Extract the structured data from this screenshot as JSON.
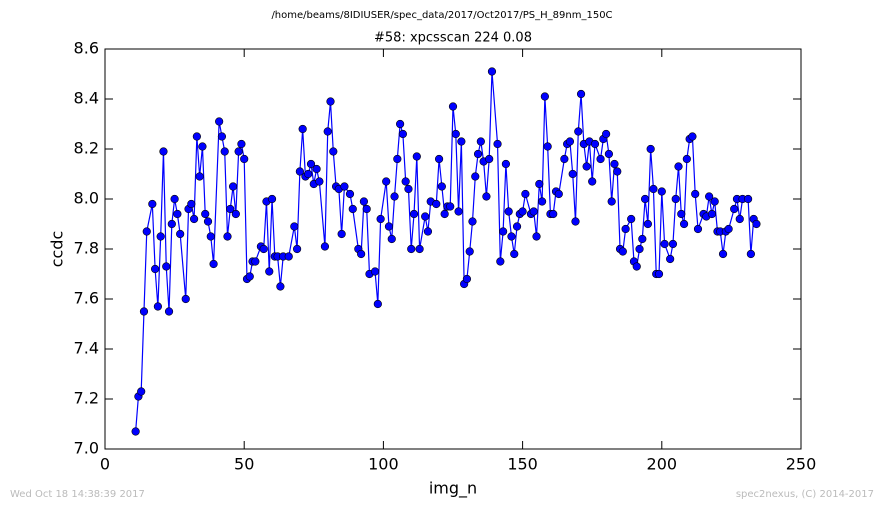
{
  "chart_data": {
    "type": "line",
    "suptitle": "/home/beams/8IDIUSER/spec_data/2017/Oct2017/PS_H_89nm_150C",
    "title": "#58: xpcsscan 224 0.08",
    "x_label": "img_n",
    "y_label": "ccdc",
    "footer_left": "Wed Oct 18 14:38:39 2017",
    "footer_right": "spec2nexus, (C) 2014-2017",
    "xlim": [
      0,
      250
    ],
    "xticks": [
      0,
      50,
      100,
      150,
      200,
      250
    ],
    "ylim": [
      7,
      8.6
    ],
    "yticks": [
      {
        "value": 7,
        "label": "7.0"
      },
      7.2,
      7.4,
      7.6,
      7.8,
      {
        "value": 8,
        "label": "8.0"
      },
      8.2,
      8.4,
      8.6
    ],
    "grid": false,
    "series": [
      {
        "color": "#0000ff",
        "x": [
          11,
          12,
          13,
          14,
          15,
          17,
          18,
          19,
          20,
          21,
          22,
          23,
          24,
          25,
          26,
          27,
          29,
          30,
          31,
          32,
          33,
          34,
          35,
          36,
          37,
          38,
          39,
          41,
          42,
          43,
          44,
          45,
          46,
          47,
          48,
          49,
          50,
          51,
          52,
          53,
          54,
          56,
          57,
          58,
          59,
          60,
          61,
          62,
          63,
          64,
          66,
          68,
          69,
          70,
          71,
          72,
          73,
          74,
          75,
          76,
          77,
          79,
          80,
          81,
          82,
          83,
          84,
          85,
          86,
          88,
          89,
          91,
          92,
          93,
          94,
          95,
          97,
          98,
          99,
          101,
          102,
          103,
          104,
          105,
          106,
          107,
          108,
          109,
          110,
          111,
          112,
          113,
          115,
          116,
          117,
          119,
          120,
          121,
          122,
          123,
          124,
          125,
          126,
          127,
          128,
          129,
          130,
          131,
          132,
          133,
          134,
          135,
          136,
          137,
          138,
          139,
          141,
          142,
          143,
          144,
          145,
          146,
          147,
          148,
          149,
          150,
          151,
          153,
          154,
          155,
          156,
          157,
          158,
          159,
          160,
          161,
          162,
          163,
          165,
          166,
          167,
          168,
          169,
          170,
          171,
          172,
          173,
          174,
          175,
          176,
          178,
          179,
          180,
          181,
          182,
          183,
          184,
          185,
          186,
          187,
          189,
          190,
          191,
          192,
          193,
          194,
          195,
          196,
          197,
          198,
          199,
          200,
          201,
          203,
          204,
          205,
          206,
          207,
          208,
          209,
          210,
          211,
          212,
          213,
          215,
          216,
          217,
          218,
          219,
          220,
          221,
          222,
          223,
          224,
          226,
          227,
          228,
          229,
          231,
          232,
          233,
          234
        ],
        "values": [
          7.07,
          7.21,
          7.23,
          7.55,
          7.87,
          7.98,
          7.72,
          7.57,
          7.85,
          8.19,
          7.73,
          7.55,
          7.9,
          8.0,
          7.94,
          7.86,
          7.6,
          7.96,
          7.98,
          7.92,
          8.25,
          8.09,
          8.21,
          7.94,
          7.91,
          7.85,
          7.74,
          8.31,
          8.25,
          8.19,
          7.85,
          7.96,
          8.05,
          7.94,
          8.19,
          8.22,
          8.16,
          7.68,
          7.69,
          7.75,
          7.75,
          7.81,
          7.8,
          7.99,
          7.71,
          8.0,
          7.77,
          7.77,
          7.65,
          7.77,
          7.77,
          7.89,
          7.8,
          8.11,
          8.28,
          8.09,
          8.1,
          8.14,
          8.06,
          8.12,
          8.07,
          7.81,
          8.27,
          8.39,
          8.19,
          8.05,
          8.04,
          7.86,
          8.05,
          8.02,
          7.96,
          7.8,
          7.78,
          7.99,
          7.96,
          7.7,
          7.71,
          7.58,
          7.92,
          8.07,
          7.89,
          7.84,
          8.01,
          8.16,
          8.3,
          8.26,
          8.07,
          8.04,
          7.8,
          7.94,
          8.17,
          7.8,
          7.93,
          7.87,
          7.99,
          7.98,
          8.16,
          8.05,
          7.94,
          7.97,
          7.97,
          8.37,
          8.26,
          7.95,
          8.23,
          7.66,
          7.68,
          7.79,
          7.91,
          8.09,
          8.18,
          8.23,
          8.15,
          8.01,
          8.16,
          8.51,
          8.22,
          7.75,
          7.87,
          8.14,
          7.95,
          7.85,
          7.78,
          7.89,
          7.94,
          7.95,
          8.02,
          7.94,
          7.95,
          7.85,
          8.06,
          7.99,
          8.41,
          8.21,
          7.94,
          7.94,
          8.03,
          8.02,
          8.16,
          8.22,
          8.23,
          8.1,
          7.91,
          8.27,
          8.42,
          8.22,
          8.13,
          8.23,
          8.07,
          8.22,
          8.16,
          8.24,
          8.26,
          8.18,
          7.99,
          8.14,
          8.11,
          7.8,
          7.79,
          7.88,
          7.92,
          7.75,
          7.73,
          7.8,
          7.84,
          8.0,
          7.9,
          8.2,
          8.04,
          7.7,
          7.7,
          8.03,
          7.82,
          7.76,
          7.82,
          8.0,
          8.13,
          7.94,
          7.9,
          8.16,
          8.24,
          8.25,
          8.02,
          7.88,
          7.94,
          7.93,
          8.01,
          7.94,
          7.99,
          7.87,
          7.87,
          7.78,
          7.87,
          7.88,
          7.96,
          8.0,
          7.92,
          8.0,
          8.0,
          7.78,
          7.92,
          7.9
        ]
      }
    ]
  }
}
